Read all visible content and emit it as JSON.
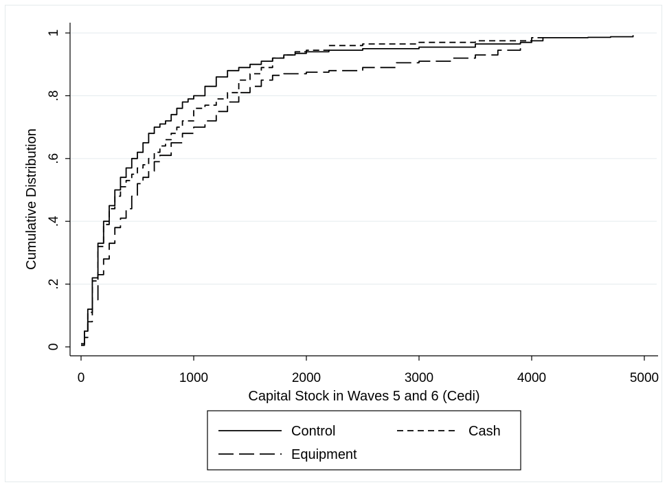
{
  "chart_data": {
    "type": "line",
    "xlabel": "Capital Stock in Waves 5 and 6 (Cedi)",
    "ylabel": "Cumulative Distribution",
    "xlim": [
      0,
      5000
    ],
    "ylim": [
      0,
      1
    ],
    "x_ticks": [
      "0",
      "1000",
      "2000",
      "3000",
      "4000",
      "5000"
    ],
    "y_ticks": [
      "0",
      ".2",
      ".4",
      ".6",
      ".8",
      "1"
    ],
    "grid": "horizontal",
    "legend_position": "bottom",
    "series": [
      {
        "name": "Control",
        "dash": "solid",
        "color": "#000000",
        "x": [
          0,
          30,
          60,
          100,
          150,
          200,
          250,
          300,
          350,
          400,
          450,
          500,
          550,
          600,
          650,
          700,
          750,
          800,
          850,
          900,
          950,
          1000,
          1100,
          1200,
          1300,
          1400,
          1500,
          1600,
          1700,
          1800,
          1900,
          2000,
          2200,
          2500,
          3000,
          3500,
          3900,
          4000,
          4100,
          4500,
          4700,
          4900
        ],
        "y": [
          0.01,
          0.05,
          0.12,
          0.22,
          0.33,
          0.4,
          0.45,
          0.5,
          0.54,
          0.57,
          0.6,
          0.62,
          0.65,
          0.68,
          0.7,
          0.71,
          0.72,
          0.74,
          0.76,
          0.78,
          0.79,
          0.8,
          0.83,
          0.86,
          0.88,
          0.89,
          0.9,
          0.91,
          0.92,
          0.93,
          0.935,
          0.94,
          0.945,
          0.95,
          0.955,
          0.965,
          0.97,
          0.975,
          0.985,
          0.986,
          0.988,
          0.993
        ]
      },
      {
        "name": "Cash",
        "dash": "short",
        "color": "#000000",
        "x": [
          0,
          30,
          60,
          100,
          150,
          200,
          250,
          300,
          350,
          400,
          450,
          500,
          550,
          600,
          650,
          700,
          750,
          800,
          850,
          900,
          1000,
          1100,
          1200,
          1300,
          1400,
          1500,
          1600,
          1700,
          1800,
          1900,
          2000,
          2200,
          2500,
          3000,
          3500,
          4000,
          4100
        ],
        "y": [
          0.01,
          0.05,
          0.11,
          0.21,
          0.32,
          0.39,
          0.44,
          0.48,
          0.51,
          0.53,
          0.55,
          0.57,
          0.58,
          0.6,
          0.62,
          0.64,
          0.66,
          0.68,
          0.7,
          0.72,
          0.76,
          0.77,
          0.79,
          0.81,
          0.85,
          0.87,
          0.89,
          0.92,
          0.93,
          0.94,
          0.945,
          0.96,
          0.965,
          0.97,
          0.975,
          0.985,
          0.985
        ]
      },
      {
        "name": "Equipment",
        "dash": "long",
        "color": "#000000",
        "x": [
          0,
          30,
          60,
          100,
          150,
          200,
          250,
          300,
          350,
          400,
          450,
          500,
          550,
          600,
          650,
          700,
          800,
          900,
          1000,
          1100,
          1200,
          1300,
          1400,
          1500,
          1600,
          1700,
          1800,
          2000,
          2200,
          2500,
          2800,
          3000,
          3300,
          3500,
          3700,
          3900
        ],
        "y": [
          0.005,
          0.03,
          0.08,
          0.15,
          0.23,
          0.28,
          0.33,
          0.38,
          0.41,
          0.44,
          0.48,
          0.52,
          0.54,
          0.56,
          0.59,
          0.61,
          0.65,
          0.68,
          0.7,
          0.72,
          0.75,
          0.78,
          0.81,
          0.83,
          0.85,
          0.865,
          0.87,
          0.875,
          0.88,
          0.89,
          0.905,
          0.91,
          0.92,
          0.93,
          0.945,
          0.96
        ]
      }
    ]
  },
  "colors": {
    "background": "#ffffff",
    "gridline": "#e8eef0",
    "frame": "#d8e0e2",
    "ink": "#000000"
  }
}
